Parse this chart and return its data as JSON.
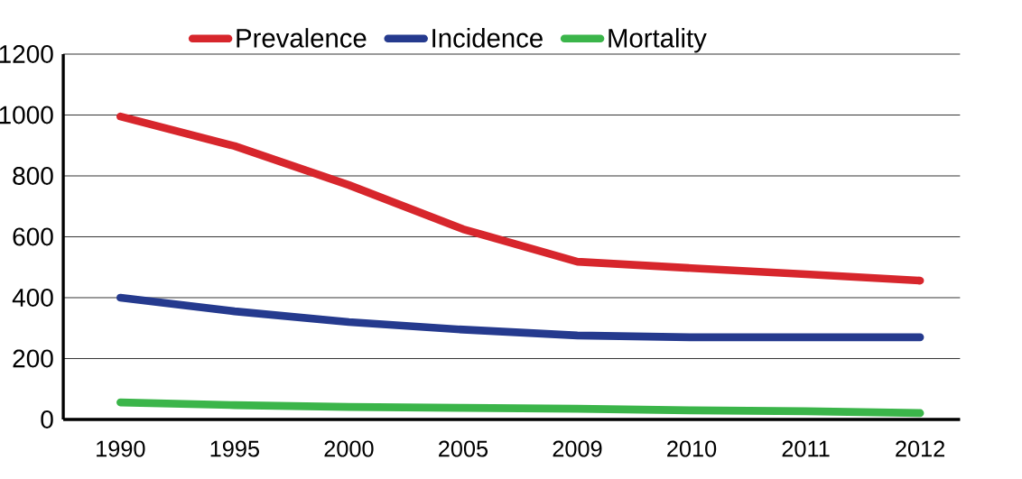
{
  "chart_data": {
    "type": "line",
    "categories": [
      "1990",
      "1995",
      "2000",
      "2005",
      "2009",
      "2010",
      "2011",
      "2012"
    ],
    "series": [
      {
        "name": "Prevalence",
        "color": "#d7262c",
        "values": [
          995,
          898,
          770,
          625,
          518,
          497,
          477,
          456
        ]
      },
      {
        "name": "Incidence",
        "color": "#253a8e",
        "values": [
          400,
          355,
          320,
          295,
          276,
          270,
          270,
          270
        ]
      },
      {
        "name": "Mortality",
        "color": "#3bb54a",
        "values": [
          56,
          47,
          41,
          38,
          35,
          30,
          27,
          21
        ]
      }
    ],
    "ylim": [
      0,
      1200
    ],
    "yticks": [
      0,
      200,
      400,
      600,
      800,
      1000,
      1200
    ],
    "grid": "y",
    "legend": "top",
    "marker": "none",
    "line_style": "solid"
  }
}
